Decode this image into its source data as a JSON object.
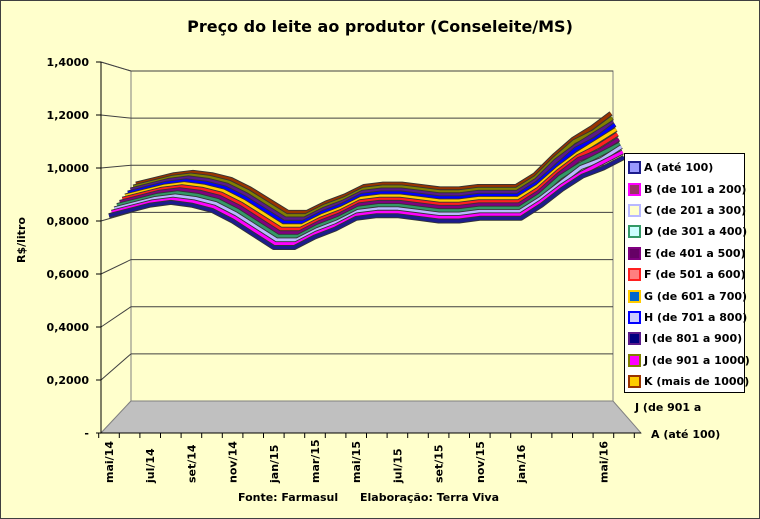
{
  "chart_data": {
    "type": "line",
    "subtype": "3d-line",
    "title": "Preço do leite ao produtor (Conseleite/MS)",
    "ylabel": "R$/litro",
    "xlabel": "",
    "ylim": [
      0,
      1.4
    ],
    "yticks": [
      "-",
      "0,2000",
      "0,4000",
      "0,6000",
      "0,8000",
      "1,0000",
      "1,2000",
      "1,4000"
    ],
    "xtick_labels": [
      "mai/14",
      "jul/14",
      "set/14",
      "nov/14",
      "jan/15",
      "mar/15",
      "mai/15",
      "jul/15",
      "set/15",
      "nov/15",
      "jan/16",
      "mai/16"
    ],
    "xtick_months": [
      0,
      2,
      4,
      6,
      8,
      10,
      12,
      14,
      16,
      18,
      20,
      24
    ],
    "months_count": 26,
    "depth_labels": [
      "J (de 901 a",
      "A (até 100)"
    ],
    "grid": true,
    "legend_position": "right",
    "series": [
      {
        "name": "A (até 100)",
        "color": "#1c1c8c",
        "fill": "#9999ff",
        "values": [
          0.82,
          0.84,
          0.86,
          0.87,
          0.86,
          0.84,
          0.8,
          0.75,
          0.7,
          0.7,
          0.74,
          0.77,
          0.81,
          0.82,
          0.82,
          0.81,
          0.8,
          0.8,
          0.81,
          0.81,
          0.81,
          0.86,
          0.92,
          0.97,
          1.0,
          1.04
        ]
      },
      {
        "name": "B (de 101 a 200)",
        "color": "#ff00ff",
        "fill": "#993366",
        "values": [
          0.83,
          0.85,
          0.87,
          0.88,
          0.87,
          0.85,
          0.81,
          0.76,
          0.71,
          0.71,
          0.75,
          0.78,
          0.82,
          0.83,
          0.83,
          0.82,
          0.81,
          0.81,
          0.82,
          0.82,
          0.82,
          0.87,
          0.93,
          0.98,
          1.02,
          1.06
        ]
      },
      {
        "name": "C (de 201 a 300)",
        "color": "#b8b8ff",
        "fill": "#ffffcc",
        "values": [
          0.84,
          0.86,
          0.88,
          0.89,
          0.88,
          0.86,
          0.82,
          0.77,
          0.72,
          0.72,
          0.76,
          0.79,
          0.83,
          0.84,
          0.84,
          0.83,
          0.82,
          0.82,
          0.83,
          0.83,
          0.83,
          0.88,
          0.94,
          1.0,
          1.03,
          1.08
        ]
      },
      {
        "name": "D (de 301 a 400)",
        "color": "#339966",
        "fill": "#ccffff",
        "values": [
          0.85,
          0.87,
          0.89,
          0.9,
          0.89,
          0.87,
          0.83,
          0.78,
          0.73,
          0.73,
          0.77,
          0.8,
          0.84,
          0.85,
          0.85,
          0.84,
          0.83,
          0.83,
          0.84,
          0.84,
          0.84,
          0.89,
          0.96,
          1.01,
          1.05,
          1.09
        ]
      },
      {
        "name": "E (de 401 a 500)",
        "color": "#800080",
        "fill": "#660066",
        "values": [
          0.86,
          0.88,
          0.9,
          0.91,
          0.9,
          0.88,
          0.84,
          0.79,
          0.74,
          0.74,
          0.78,
          0.81,
          0.85,
          0.86,
          0.86,
          0.85,
          0.84,
          0.84,
          0.85,
          0.85,
          0.85,
          0.9,
          0.97,
          1.03,
          1.06,
          1.11
        ]
      },
      {
        "name": "F (de 501 a 600)",
        "color": "#ff2020",
        "fill": "#ff8080",
        "values": [
          0.87,
          0.89,
          0.91,
          0.92,
          0.91,
          0.89,
          0.85,
          0.8,
          0.75,
          0.75,
          0.79,
          0.82,
          0.86,
          0.87,
          0.87,
          0.86,
          0.85,
          0.85,
          0.86,
          0.86,
          0.86,
          0.91,
          0.98,
          1.04,
          1.08,
          1.13
        ]
      },
      {
        "name": "G (de 601 a 700)",
        "color": "#ffcc00",
        "fill": "#0066cc",
        "values": [
          0.88,
          0.9,
          0.92,
          0.93,
          0.92,
          0.9,
          0.86,
          0.81,
          0.76,
          0.76,
          0.8,
          0.83,
          0.87,
          0.88,
          0.88,
          0.87,
          0.86,
          0.86,
          0.87,
          0.87,
          0.87,
          0.92,
          0.99,
          1.05,
          1.1,
          1.15
        ]
      },
      {
        "name": "H (de 701 a 800)",
        "color": "#0000ff",
        "fill": "#ccccff",
        "values": [
          0.89,
          0.91,
          0.93,
          0.94,
          0.93,
          0.91,
          0.87,
          0.82,
          0.77,
          0.77,
          0.81,
          0.84,
          0.88,
          0.89,
          0.89,
          0.88,
          0.87,
          0.87,
          0.88,
          0.88,
          0.88,
          0.93,
          1.0,
          1.07,
          1.11,
          1.17
        ]
      },
      {
        "name": "I (de 801 a 900)",
        "color": "#5a1a8a",
        "fill": "#000080",
        "values": [
          0.9,
          0.92,
          0.94,
          0.95,
          0.94,
          0.92,
          0.88,
          0.83,
          0.78,
          0.78,
          0.82,
          0.85,
          0.89,
          0.9,
          0.9,
          0.89,
          0.88,
          0.88,
          0.89,
          0.89,
          0.89,
          0.94,
          1.02,
          1.08,
          1.13,
          1.18
        ]
      },
      {
        "name": "J (de 901 a 1000)",
        "color": "#808000",
        "fill": "#ff00ff",
        "values": [
          0.91,
          0.93,
          0.95,
          0.96,
          0.95,
          0.93,
          0.89,
          0.84,
          0.79,
          0.79,
          0.83,
          0.86,
          0.9,
          0.91,
          0.91,
          0.9,
          0.89,
          0.89,
          0.9,
          0.9,
          0.9,
          0.95,
          1.03,
          1.1,
          1.14,
          1.2
        ]
      },
      {
        "name": "K (mais de 1000)",
        "color": "#993300",
        "fill": "#ffcc00",
        "values": [
          0.92,
          0.94,
          0.96,
          0.97,
          0.96,
          0.94,
          0.9,
          0.85,
          0.8,
          0.8,
          0.84,
          0.87,
          0.91,
          0.92,
          0.92,
          0.91,
          0.9,
          0.9,
          0.91,
          0.91,
          0.91,
          0.96,
          1.04,
          1.11,
          1.16,
          1.22
        ]
      }
    ]
  },
  "footer": {
    "source": "Fonte: Farmasul",
    "credit": "Elaboração: Terra Viva"
  }
}
